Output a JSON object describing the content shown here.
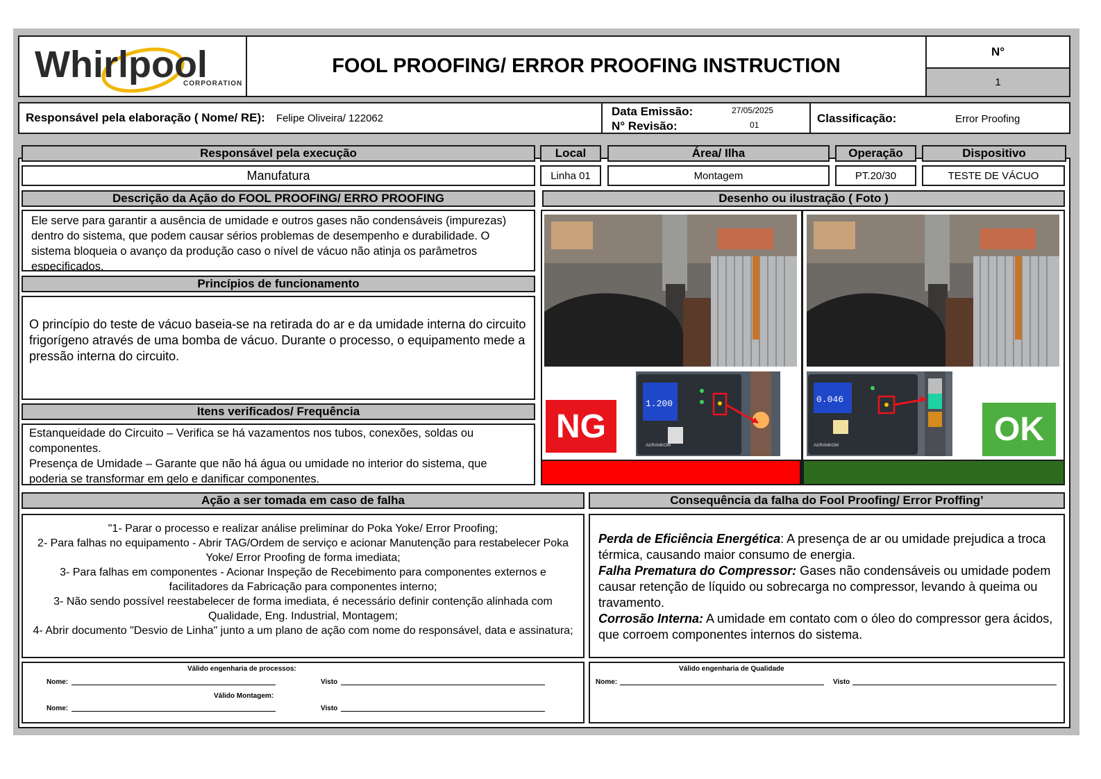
{
  "header": {
    "logo_text": "Whirlpool",
    "logo_sub": "CORPORATION",
    "title": "FOOL PROOFING/ ERROR PROOFING INSTRUCTION",
    "number_label": "N°",
    "number_value": "1"
  },
  "info": {
    "responsavel_label": "Responsável pela elaboração ( Nome/ RE):",
    "responsavel_value": "Felipe Oliveira/ 122062",
    "data_emissao_label": "Data Emissão:",
    "data_emissao_value": "27/05/2025",
    "revisao_label": "N° Revisão:",
    "revisao_value": "01",
    "classificacao_label": "Classificação:",
    "classificacao_value": "Error Proofing"
  },
  "columns": {
    "execucao_label": "Responsável pela execução",
    "execucao_value": "Manufatura",
    "local_label": "Local",
    "local_value": "Linha 01",
    "area_label": "Área/ Ilha",
    "area_value": "Montagem",
    "operacao_label": "Operação",
    "operacao_value": "PT.20/30",
    "dispositivo_label": "Dispositivo",
    "dispositivo_value": "TESTE DE VÁCUO"
  },
  "descricao": {
    "label": "Descrição da Ação do FOOL PROOFING/ ERRO PROOFING",
    "text": "Ele serve para garantir a ausência de umidade e outros gases não condensáveis (impurezas) dentro do sistema, que podem causar sérios problemas de desempenho e durabilidade. O sistema bloqueia o avanço da produção caso o nível de vácuo não atinja os parâmetros especificados."
  },
  "principios": {
    "label": "Princípios de funcionamento",
    "text": "O princípio do teste de vácuo baseia-se na retirada do ar e da umidade interna do circuito frigorígeno através de uma bomba de vácuo. Durante o processo, o equipamento mede a pressão interna do circuito."
  },
  "itens": {
    "label": "Itens verificados/ Frequência",
    "line1": "Estanqueidade do Circuito – Verifica se há vazamentos nos tubos, conexões, soldas ou componentes.",
    "line2": "Presença de Umidade – Garante que não há água ou umidade no interior do sistema, que poderia se transformar em gelo e danificar componentes."
  },
  "desenho": {
    "label": "Desenho ou ilustração ( Foto )",
    "ng_label": "NG",
    "ok_label": "OK",
    "ng_display": "1.200",
    "ok_display": "0.046",
    "panel_brand": "AGRAMKOW",
    "colors": {
      "ng": "#ff0000",
      "ok": "#2e6b1f",
      "ok_badge": "#4caf3f",
      "ng_badge": "#e8141c"
    }
  },
  "acao": {
    "label": "Ação a ser tomada em caso de falha",
    "lines": [
      "\"1- Parar o processo e realizar análise preliminar do Poka Yoke/ Error Proofing;",
      "2- Para falhas no equipamento - Abrir TAG/Ordem de serviço e acionar Manutenção para restabelecer Poka Yoke/ Error Proofing de forma imediata;",
      "3- Para falhas em componentes - Acionar Inspeção de Recebimento para componentes externos e facilitadores da Fabricação para componentes interno;",
      "3- Não sendo possível reestabelecer de forma imediata, é necessário definir contenção alinhada com Qualidade, Eng. Industrial, Montagem;",
      "4- Abrir documento \"Desvio de Linha\" junto a um plano de ação com nome do responsável, data e assinatura;"
    ]
  },
  "consequencia": {
    "label": "Consequência da falha do Fool Proofing/ Error Proffing’",
    "items": [
      {
        "title": "Perda de Eficiência Energética",
        "sep": ":",
        "text": " A presença de ar ou umidade prejudica a troca térmica, causando maior consumo de energia."
      },
      {
        "title": "Falha Prematura do Compressor:",
        "sep": "",
        "text": " Gases não condensáveis ou umidade podem causar retenção de líquido ou sobrecarga no compressor, levando à queima ou travamento."
      },
      {
        "title": "Corrosão Interna:",
        "sep": "",
        "text": " A umidade em contato com o óleo do compressor gera ácidos, que corroem componentes internos do sistema."
      }
    ]
  },
  "assinaturas": {
    "processos_label": "Válido engenharia de processos:",
    "montagem_label": "Válido Montagem:",
    "qualidade_label": "Válido engenharia de Qualidade",
    "nome_label": "Nome:",
    "visto_label": "Visto"
  }
}
